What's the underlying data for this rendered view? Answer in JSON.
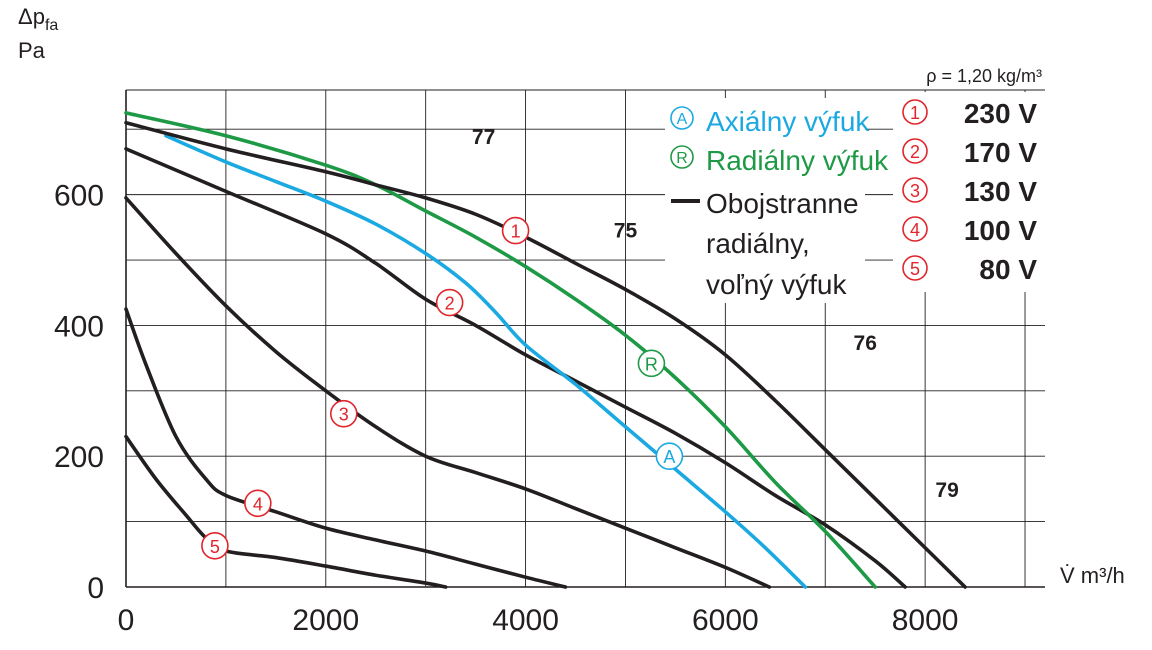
{
  "chart_data": {
    "type": "line",
    "xlabel": "V̇ m³/h",
    "ylabel": [
      "Δp",
      "fa",
      "Pa"
    ],
    "density": "ρ = 1,20 kg/m³",
    "xlim": [
      0,
      9200
    ],
    "ylim": [
      0,
      760
    ],
    "xticks": [
      0,
      2000,
      4000,
      6000,
      8000
    ],
    "yticks": [
      0,
      200,
      400,
      600
    ],
    "grid": true,
    "colors": {
      "axial": "#1ba9e1",
      "radial": "#1e9a46",
      "black": "#231f20",
      "marker_red": "#e1252c"
    },
    "series": [
      {
        "id": "A",
        "name": "Axiálny výfuk",
        "color": "#1ba9e1",
        "x": [
          400,
          1000,
          1500,
          2000,
          2500,
          3000,
          3400,
          3700,
          4000,
          4500,
          5000,
          5500,
          6000,
          6400,
          6800
        ],
        "y": [
          690,
          650,
          620,
          590,
          555,
          510,
          465,
          420,
          370,
          310,
          245,
          180,
          115,
          60,
          0
        ]
      },
      {
        "id": "R",
        "name": "Radiálny výfuk",
        "color": "#1e9a46",
        "x": [
          0,
          1000,
          2000,
          2500,
          3000,
          3500,
          4000,
          4500,
          5000,
          5500,
          6000,
          6500,
          7000,
          7500
        ],
        "y": [
          725,
          690,
          645,
          615,
          575,
          535,
          490,
          440,
          385,
          320,
          245,
          160,
          85,
          0
        ]
      },
      {
        "id": "1",
        "name": "230 V",
        "color": "#231f20",
        "x": [
          0,
          1000,
          2000,
          2500,
          3000,
          3500,
          4000,
          4500,
          5000,
          5500,
          6000,
          6500,
          7000,
          7500,
          8000,
          8400
        ],
        "y": [
          710,
          670,
          635,
          615,
          595,
          570,
          535,
          495,
          455,
          410,
          355,
          285,
          210,
          135,
          60,
          0
        ]
      },
      {
        "id": "2",
        "name": "170 V",
        "color": "#231f20",
        "x": [
          0,
          1000,
          2000,
          2500,
          3000,
          3500,
          4000,
          4500,
          5000,
          5500,
          6000,
          6500,
          7000,
          7500,
          7800
        ],
        "y": [
          670,
          605,
          540,
          495,
          440,
          400,
          355,
          315,
          275,
          235,
          190,
          140,
          95,
          40,
          0
        ]
      },
      {
        "id": "3",
        "name": "130 V",
        "color": "#231f20",
        "x": [
          0,
          500,
          1000,
          1500,
          2000,
          2500,
          3000,
          3500,
          4000,
          4500,
          5000,
          5500,
          6000,
          6440
        ],
        "y": [
          595,
          510,
          430,
          360,
          300,
          245,
          200,
          175,
          150,
          120,
          90,
          60,
          30,
          0
        ]
      },
      {
        "id": "4",
        "name": "100 V",
        "color": "#231f20",
        "x": [
          0,
          200,
          500,
          800,
          1000,
          1500,
          2000,
          2500,
          3000,
          3500,
          4000,
          4400
        ],
        "y": [
          425,
          340,
          230,
          165,
          140,
          115,
          90,
          72,
          55,
          35,
          15,
          0
        ]
      },
      {
        "id": "5",
        "name": "80 V",
        "color": "#231f20",
        "x": [
          0,
          300,
          600,
          800,
          1000,
          1500,
          2000,
          2500,
          3000,
          3200
        ],
        "y": [
          230,
          165,
          110,
          75,
          55,
          45,
          32,
          18,
          6,
          0
        ]
      }
    ],
    "curve_markers": [
      {
        "label": "①",
        "x": 1950,
        "y": 545,
        "color": "#e1252c"
      },
      {
        "label": "②",
        "x": 1620,
        "y": 435,
        "color": "#e1252c"
      },
      {
        "label": "③",
        "x": 1090,
        "y": 265,
        "color": "#e1252c"
      },
      {
        "label": "④",
        "x": 660,
        "y": 128,
        "color": "#e1252c"
      },
      {
        "label": "⑤",
        "x": 445,
        "y": 63,
        "color": "#e1252c"
      },
      {
        "label": "Ⓡ",
        "x": 2630,
        "y": 342,
        "color": "#1e9a46"
      },
      {
        "label": "Ⓐ",
        "x": 2720,
        "y": 200,
        "color": "#1ba9e1"
      }
    ],
    "efficiency_labels": [
      {
        "label": "77",
        "x": 1790,
        "y": 690
      },
      {
        "label": "75",
        "x": 2500,
        "y": 547
      },
      {
        "label": "76",
        "x": 3700,
        "y": 375
      },
      {
        "label": "79",
        "x": 4110,
        "y": 150
      }
    ],
    "legend": {
      "placement": "top-right",
      "items": [
        {
          "marker": "Ⓐ",
          "text": "Axiálny výfuk",
          "color": "#1ba9e1"
        },
        {
          "marker": "Ⓡ",
          "text": "Radiálny výfuk",
          "color": "#1e9a46"
        },
        {
          "marker": "line",
          "text": [
            "Obojstranne",
            "radiálny,",
            "voľný výfuk"
          ],
          "color": "#231f20"
        }
      ]
    },
    "voltage_table": [
      {
        "marker": "①",
        "value": "230 V"
      },
      {
        "marker": "②",
        "value": "170 V"
      },
      {
        "marker": "③",
        "value": "130 V"
      },
      {
        "marker": "④",
        "value": "100 V"
      },
      {
        "marker": "⑤",
        "value": "80 V"
      }
    ]
  }
}
